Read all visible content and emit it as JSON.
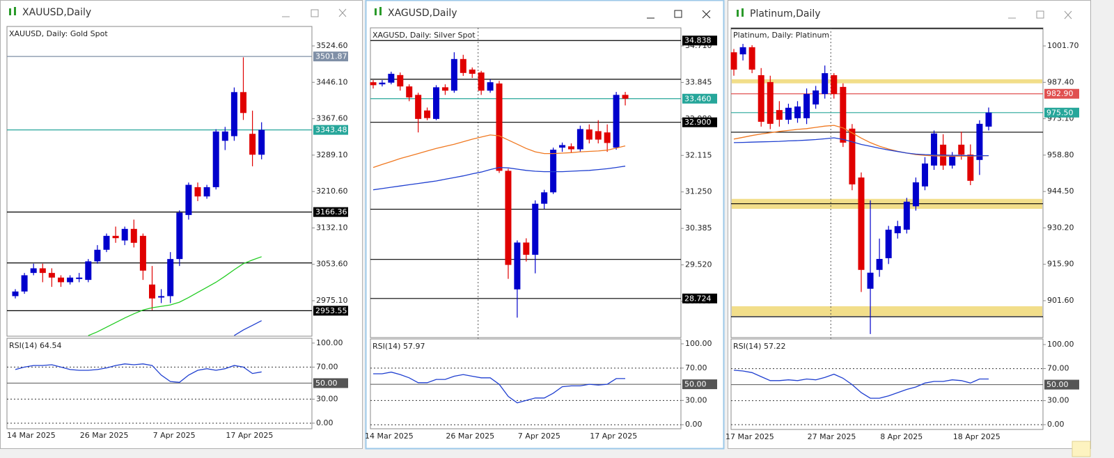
{
  "chart_data": [
    {
      "type": "candlestick",
      "window_title": "XAUUSD,Daily",
      "title": "XAUUSD, Daily:  Gold Spot",
      "categories": [
        "14 Mar 2025",
        null,
        null,
        null,
        null,
        null,
        null,
        null,
        "26 Mar 2025",
        null,
        null,
        null,
        null,
        null,
        null,
        null,
        "7 Apr 2025",
        null,
        null,
        null,
        null,
        null,
        null,
        null,
        "17 Apr 2025",
        null,
        null,
        null
      ],
      "open": [
        2985,
        2995,
        3035,
        3045,
        3035,
        3025,
        3015,
        3022,
        3020,
        3060,
        3085,
        3115,
        3105,
        3130,
        3115,
        3010,
        2982,
        2985,
        3065,
        3160,
        3220,
        3200,
        3220,
        3320,
        3330,
        3425,
        3335,
        3290
      ],
      "close": [
        2995,
        3030,
        3045,
        3035,
        3025,
        3015,
        3025,
        3025,
        3060,
        3085,
        3115,
        3110,
        3130,
        3100,
        3040,
        2980,
        2985,
        3065,
        3165,
        3225,
        3200,
        3220,
        3340,
        3340,
        3425,
        3380,
        3290,
        3343.48
      ],
      "high": [
        3000,
        3035,
        3055,
        3055,
        3045,
        3030,
        3030,
        3035,
        3065,
        3095,
        3120,
        3135,
        3135,
        3150,
        3120,
        3050,
        3000,
        3080,
        3170,
        3230,
        3230,
        3225,
        3345,
        3350,
        3435,
        3500,
        3385,
        3360
      ],
      "low": [
        2980,
        2990,
        3030,
        3015,
        3005,
        3005,
        3010,
        3015,
        3015,
        3055,
        3080,
        3100,
        3095,
        3090,
        3020,
        2955,
        2970,
        2970,
        3050,
        3150,
        3190,
        3195,
        3215,
        3300,
        3320,
        3365,
        3265,
        3280
      ],
      "up_color": "#0000cc",
      "down_color": "#e00000",
      "ylim": [
        2898.6,
        3566.6
      ],
      "yticks": [
        {
          "value": 3524.6,
          "label": "3524.60"
        },
        {
          "value": 3446.1,
          "label": "3446.10"
        },
        {
          "value": 3367.6,
          "label": "3367.60"
        },
        {
          "value": 3289.1,
          "label": "3289.10"
        },
        {
          "value": 3210.6,
          "label": "3210.60"
        },
        {
          "value": 3132.1,
          "label": "3132.10"
        },
        {
          "value": 3053.6,
          "label": "3053.60"
        },
        {
          "value": 2975.1,
          "label": "2975.10"
        }
      ],
      "series": [
        {
          "color": "#22cc22",
          "values": [
            null,
            null,
            null,
            null,
            null,
            null,
            null,
            null,
            2900,
            2908,
            2918,
            2928,
            2938,
            2947,
            2955,
            2960,
            2963,
            2966,
            2972,
            2982,
            2993,
            3004,
            3015,
            3028,
            3042,
            3055,
            3063,
            3070
          ]
        },
        {
          "color": "#1f3fd0",
          "values": [
            null,
            null,
            null,
            null,
            null,
            null,
            null,
            null,
            null,
            null,
            null,
            null,
            null,
            null,
            null,
            null,
            null,
            null,
            null,
            null,
            null,
            null,
            null,
            null,
            2900,
            2912,
            2922,
            2932
          ]
        }
      ],
      "price_lines": [
        {
          "value": 3501.87,
          "label": "3501.87",
          "color": "#7f8fa6"
        },
        {
          "value": 3343.48,
          "label": "3343.48",
          "color": "#26a69a"
        },
        {
          "value": 3166.36,
          "label": "3166.36",
          "color": "#000000"
        },
        {
          "value": 2953.55,
          "label": "2953.55",
          "color": "#000000"
        }
      ],
      "lines": [
        {
          "value": 3056.6,
          "color": "#000000"
        }
      ],
      "rsi": {
        "title": "RSI(14) 64.54",
        "color": "#1f3fd0",
        "values": [
          67,
          70,
          72,
          72,
          73,
          70,
          67,
          66,
          66,
          67,
          69,
          72,
          74,
          73,
          74,
          72,
          60,
          52,
          51,
          60,
          66,
          68,
          66,
          68,
          72,
          70,
          62,
          64
        ],
        "ylim": [
          -7,
          106
        ],
        "yticks": [
          {
            "value": 100,
            "label": "100.00"
          },
          {
            "value": 70,
            "label": "70.00"
          },
          {
            "value": 30,
            "label": "30.00"
          },
          {
            "value": 0,
            "label": "0.00"
          }
        ],
        "price_lines": [
          {
            "value": 50,
            "label": "50.00",
            "color": "#555555"
          }
        ]
      }
    },
    {
      "type": "candlestick",
      "window_title": "XAGUSD,Daily",
      "title": "XAGUSD, Daily:  Silver Spot",
      "categories": [
        "14 Mar 2025",
        null,
        null,
        null,
        null,
        null,
        null,
        null,
        null,
        "26 Mar 2025",
        null,
        null,
        null,
        null,
        null,
        null,
        null,
        "7 Apr 2025",
        null,
        null,
        null,
        null,
        null,
        null,
        null,
        "17 Apr 2025",
        null,
        null,
        null
      ],
      "open": [
        33.85,
        33.8,
        33.84,
        34.02,
        33.75,
        33.55,
        33.18,
        32.98,
        33.73,
        33.65,
        34.4,
        34.15,
        34.08,
        33.65,
        33.82,
        31.75,
        28.94,
        30.05,
        29.76,
        30.97,
        31.24,
        32.3,
        32.33,
        32.26,
        32.73,
        32.69,
        32.66,
        32.3,
        33.55
      ],
      "close": [
        33.78,
        33.84,
        34.05,
        33.75,
        33.49,
        32.98,
        33.0,
        33.73,
        33.65,
        34.4,
        34.07,
        34.05,
        33.65,
        33.85,
        31.75,
        29.52,
        30.05,
        29.76,
        30.97,
        31.24,
        32.25,
        32.36,
        32.26,
        32.74,
        32.49,
        32.49,
        32.41,
        33.55,
        33.46
      ],
      "high": [
        33.9,
        33.9,
        34.1,
        34.08,
        33.8,
        33.6,
        33.25,
        33.78,
        33.8,
        34.56,
        34.5,
        34.2,
        34.12,
        33.92,
        33.88,
        31.8,
        30.1,
        30.15,
        31.05,
        31.3,
        32.3,
        32.42,
        32.4,
        32.82,
        32.85,
        32.95,
        32.85,
        33.62,
        33.62
      ],
      "low": [
        33.7,
        33.75,
        33.8,
        33.65,
        33.4,
        32.66,
        32.95,
        32.95,
        33.55,
        33.6,
        34.0,
        33.95,
        33.55,
        33.6,
        31.7,
        29.19,
        28.27,
        29.6,
        29.32,
        30.85,
        31.2,
        32.2,
        32.18,
        32.2,
        32.4,
        32.4,
        32.2,
        32.25,
        33.3
      ],
      "up_color": "#0000cc",
      "down_color": "#e00000",
      "ylim": [
        27.797,
        35.139
      ],
      "yticks": [
        {
          "value": 34.71,
          "label": "34.710"
        },
        {
          "value": 33.845,
          "label": "33.845"
        },
        {
          "value": 32.98,
          "label": "32.980"
        },
        {
          "value": 32.115,
          "label": "32.115"
        },
        {
          "value": 31.25,
          "label": "31.250"
        },
        {
          "value": 30.385,
          "label": "30.385"
        },
        {
          "value": 29.52,
          "label": "29.520"
        },
        {
          "value": 28.655,
          "label": "28.655"
        }
      ],
      "series": [
        {
          "color": "#f07820",
          "values": [
            31.83,
            31.9,
            31.97,
            32.04,
            32.1,
            32.16,
            32.22,
            32.28,
            32.33,
            32.38,
            32.44,
            32.5,
            32.55,
            32.6,
            32.58,
            32.48,
            32.38,
            32.28,
            32.2,
            32.16,
            32.16,
            32.17,
            32.18,
            32.2,
            32.21,
            32.22,
            32.24,
            32.29,
            32.34
          ]
        },
        {
          "color": "#1f3fd0",
          "values": [
            31.3,
            31.33,
            31.36,
            31.39,
            31.42,
            31.45,
            31.48,
            31.51,
            31.55,
            31.59,
            31.63,
            31.68,
            31.72,
            31.78,
            31.83,
            31.82,
            31.79,
            31.76,
            31.74,
            31.73,
            31.73,
            31.73,
            31.74,
            31.75,
            31.76,
            31.78,
            31.8,
            31.83,
            31.86
          ]
        }
      ],
      "price_lines": [
        {
          "value": 34.838,
          "label": "34.838",
          "color": "#000000"
        },
        {
          "value": 33.46,
          "label": "33.460",
          "color": "#26a69a"
        },
        {
          "value": 32.9,
          "label": "32.900",
          "color": "#000000"
        },
        {
          "value": 28.724,
          "label": "28.724",
          "color": "#000000"
        }
      ],
      "lines": [
        {
          "value": 33.92,
          "color": "#000000"
        },
        {
          "value": 30.84,
          "color": "#000000"
        },
        {
          "value": 29.65,
          "color": "#000000"
        }
      ],
      "period_separator": 12,
      "rsi": {
        "title": "RSI(14) 57.97",
        "color": "#1f3fd0",
        "values": [
          63,
          63,
          65,
          62,
          58,
          52,
          52,
          56,
          56,
          60,
          62,
          60,
          58,
          58,
          50,
          35,
          27,
          30,
          33,
          33,
          39,
          47,
          48,
          48,
          50,
          49,
          50,
          57,
          57
        ],
        "ylim": [
          -5,
          106
        ],
        "yticks": [
          {
            "value": 100,
            "label": "100.00"
          },
          {
            "value": 70,
            "label": "70.00"
          },
          {
            "value": 30,
            "label": "30.00"
          },
          {
            "value": 0,
            "label": "0.00"
          }
        ],
        "price_lines": [
          {
            "value": 50,
            "label": "50.00",
            "color": "#555555"
          }
        ]
      }
    },
    {
      "type": "candlestick",
      "window_title": "Platinum,Daily",
      "title": "Platinum, Daily:  Platinum",
      "categories": [
        "17 Mar 2025",
        null,
        null,
        null,
        null,
        null,
        null,
        null,
        null,
        "27 Mar 2025",
        null,
        null,
        null,
        null,
        null,
        null,
        null,
        "8 Apr 2025",
        null,
        null,
        null,
        null,
        null,
        null,
        null,
        "18 Apr 2025",
        null,
        null,
        null
      ],
      "open": [
        999.2,
        998.4,
        1001.2,
        990.2,
        987.5,
        976.5,
        972.7,
        973.3,
        973.3,
        978.7,
        982.8,
        990.2,
        985.6,
        969.2,
        950.0,
        906.3,
        913.7,
        918.3,
        928.1,
        929.5,
        938.7,
        946.5,
        954.7,
        962.9,
        954.7,
        962.9,
        959.0,
        956.9,
        970.0
      ],
      "close": [
        992.4,
        1001.2,
        992.4,
        971.9,
        971.1,
        972.7,
        977.4,
        977.9,
        982.8,
        984.2,
        991.0,
        982.8,
        963.7,
        947.3,
        913.7,
        912.6,
        918.0,
        929.5,
        930.9,
        940.5,
        948.1,
        955.5,
        967.3,
        954.7,
        958.2,
        959.0,
        948.7,
        971.1,
        975.5
      ],
      "high": [
        1000.5,
        1002.5,
        1002.0,
        993.0,
        990.0,
        980.0,
        979.0,
        980.0,
        985.0,
        986.0,
        994.0,
        991.0,
        987.0,
        971.0,
        952.0,
        941.0,
        926.0,
        931.0,
        933.0,
        942.0,
        950.0,
        958.0,
        968.5,
        967.0,
        960.0,
        968.0,
        963.0,
        972.5,
        977.5
      ],
      "low": [
        990.0,
        996.0,
        991.0,
        970.0,
        969.0,
        970.0,
        971.0,
        971.5,
        971.0,
        977.0,
        981.0,
        981.0,
        962.0,
        945.0,
        905.0,
        888.5,
        911.0,
        916.0,
        926.0,
        928.0,
        937.0,
        945.0,
        953.0,
        953.0,
        953.5,
        957.0,
        947.0,
        951.0,
        968.5
      ],
      "up_color": "#0000cc",
      "down_color": "#e00000",
      "ylim": [
        887.1,
        1008.81
      ],
      "yticks": [
        {
          "value": 1001.7,
          "label": "1001.70"
        },
        {
          "value": 987.4,
          "label": "987.40"
        },
        {
          "value": 973.1,
          "label": "973.10"
        },
        {
          "value": 958.8,
          "label": "958.80"
        },
        {
          "value": 944.5,
          "label": "944.50"
        },
        {
          "value": 930.2,
          "label": "930.20"
        },
        {
          "value": 915.9,
          "label": "915.90"
        },
        {
          "value": 901.6,
          "label": "901.60"
        }
      ],
      "series": [
        {
          "color": "#f07820",
          "values": [
            965.1,
            965.8,
            966.5,
            967.1,
            967.6,
            968.1,
            968.5,
            968.9,
            969.2,
            969.7,
            970.2,
            970.5,
            969.5,
            967.5,
            965.5,
            963.7,
            962.3,
            961.2,
            960.3,
            959.6,
            959.0,
            958.7,
            958.5,
            958.4,
            958.4,
            958.4,
            958.4,
            958.5,
            958.6
          ]
        },
        {
          "color": "#1f3fd0",
          "values": [
            963.7,
            963.8,
            963.9,
            964.0,
            964.1,
            964.2,
            964.4,
            964.5,
            964.7,
            964.9,
            965.2,
            965.6,
            965.0,
            964.0,
            963.0,
            962.3,
            961.5,
            960.8,
            960.2,
            959.6,
            959.2,
            959.0,
            958.9,
            958.8,
            958.7,
            958.7,
            958.6,
            958.6,
            958.6
          ]
        }
      ],
      "zones": [
        {
          "from": 987.0,
          "to": 988.6,
          "color": "#f2de8a"
        },
        {
          "from": 937.7,
          "to": 941.6,
          "color": "#f2de8a"
        },
        {
          "from": 895.6,
          "to": 899.4,
          "color": "#f2de8a"
        }
      ],
      "price_lines": [
        {
          "value": 982.9,
          "label": "982.90",
          "color": "#e05050"
        },
        {
          "value": 975.5,
          "label": "975.50",
          "color": "#26a69a"
        }
      ],
      "lines": [
        {
          "value": 1008.5,
          "color": "#000000"
        },
        {
          "value": 967.8,
          "color": "#000000"
        },
        {
          "value": 939.7,
          "color": "#000000"
        },
        {
          "value": 895.3,
          "color": "#000000"
        }
      ],
      "period_separator": 11,
      "rsi": {
        "title": "RSI(14) 57.22",
        "color": "#1f3fd0",
        "values": [
          68,
          67,
          65,
          60,
          55,
          55,
          56,
          55,
          57,
          56,
          59,
          63,
          58,
          50,
          40,
          33,
          33,
          36,
          40,
          44,
          47,
          52,
          54,
          54,
          56,
          55,
          52,
          57,
          57
        ],
        "ylim": [
          -6,
          107
        ],
        "yticks": [
          {
            "value": 100,
            "label": "100.00"
          },
          {
            "value": 70,
            "label": "70.00"
          },
          {
            "value": 30,
            "label": "30.00"
          },
          {
            "value": 0,
            "label": "0.00"
          }
        ],
        "price_lines": [
          {
            "value": 50,
            "label": "50.00",
            "color": "#555555"
          }
        ]
      }
    }
  ]
}
